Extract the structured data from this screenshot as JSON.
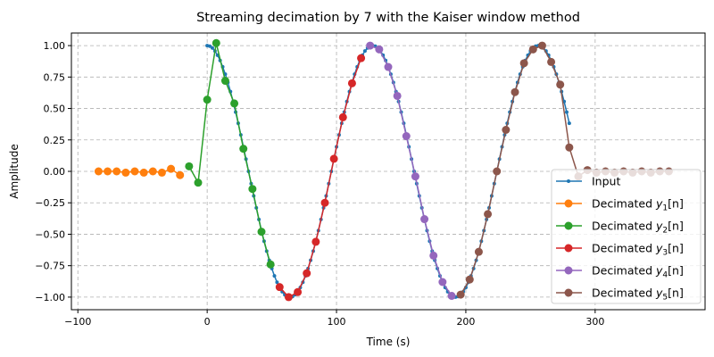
{
  "chart_data": {
    "type": "line",
    "title": "Streaming decimation by 7 with the Kaiser window method",
    "xlabel": "Time (s)",
    "ylabel": "Amplitude",
    "xlim": [
      -105,
      385
    ],
    "ylim": [
      -1.1,
      1.1
    ],
    "xticks": [
      -100,
      0,
      100,
      200,
      300
    ],
    "xtick_labels": [
      "−100",
      "0",
      "100",
      "200",
      "300"
    ],
    "yticks": [
      1.0,
      0.75,
      0.5,
      0.25,
      0.0,
      -0.25,
      -0.5,
      -0.75,
      -1.0
    ],
    "ytick_labels": [
      "1.00",
      "0.75",
      "0.50",
      "0.25",
      "0.00",
      "−0.25",
      "−0.50",
      "−0.75",
      "−1.00"
    ],
    "grid": true,
    "legend_placement": "lower-right",
    "input": {
      "name": "Input",
      "color": "#1f77b4",
      "x_start": 0,
      "x_end": 280,
      "x_step": 2,
      "function": "cos(2*pi*t/128)"
    },
    "series": [
      {
        "name": "Decimated",
        "var": "y",
        "sub": "1",
        "suffix": "[n]",
        "color": "#ff7f0e",
        "x": [
          -84,
          -77,
          -70,
          -63,
          -56,
          -49,
          -42,
          -35,
          -28,
          -21
        ],
        "values": [
          0,
          0,
          0,
          -0.01,
          0,
          -0.01,
          0,
          -0.01,
          0.02,
          -0.03
        ]
      },
      {
        "name": "Decimated",
        "var": "y",
        "sub": "2",
        "suffix": "[n]",
        "color": "#2ca02c",
        "x": [
          -14,
          -7,
          0,
          7,
          14,
          21,
          28,
          35,
          42,
          49
        ],
        "values": [
          0.04,
          -0.09,
          0.57,
          1.02,
          0.72,
          0.54,
          0.18,
          -0.14,
          -0.48,
          -0.74
        ]
      },
      {
        "name": "Decimated",
        "var": "y",
        "sub": "3",
        "suffix": "[n]",
        "color": "#d62728",
        "x": [
          56,
          63,
          70,
          77,
          84,
          91,
          98,
          105,
          112,
          119
        ],
        "values": [
          -0.92,
          -1.0,
          -0.96,
          -0.81,
          -0.56,
          -0.25,
          0.1,
          0.43,
          0.7,
          0.9
        ]
      },
      {
        "name": "Decimated",
        "var": "y",
        "sub": "4",
        "suffix": "[n]",
        "color": "#9467bd",
        "x": [
          126,
          133,
          140,
          147,
          154,
          161,
          168,
          175,
          182,
          189
        ],
        "values": [
          1.0,
          0.97,
          0.83,
          0.6,
          0.28,
          -0.04,
          -0.38,
          -0.67,
          -0.88,
          -0.99
        ]
      },
      {
        "name": "Decimated",
        "var": "y",
        "sub": "5",
        "suffix": "[n]",
        "color": "#8c564b",
        "x": [
          196,
          203,
          210,
          217,
          224,
          231,
          238,
          245,
          252,
          259,
          266,
          273,
          280,
          287,
          294,
          301,
          308,
          315,
          322,
          329,
          336,
          343,
          350,
          357
        ],
        "values": [
          -0.98,
          -0.86,
          -0.64,
          -0.34,
          0.0,
          0.33,
          0.63,
          0.86,
          0.97,
          1.0,
          0.87,
          0.69,
          0.19,
          -0.04,
          0.01,
          -0.01,
          0,
          -0.01,
          0,
          -0.01,
          0,
          -0.01,
          0,
          0
        ]
      }
    ]
  }
}
